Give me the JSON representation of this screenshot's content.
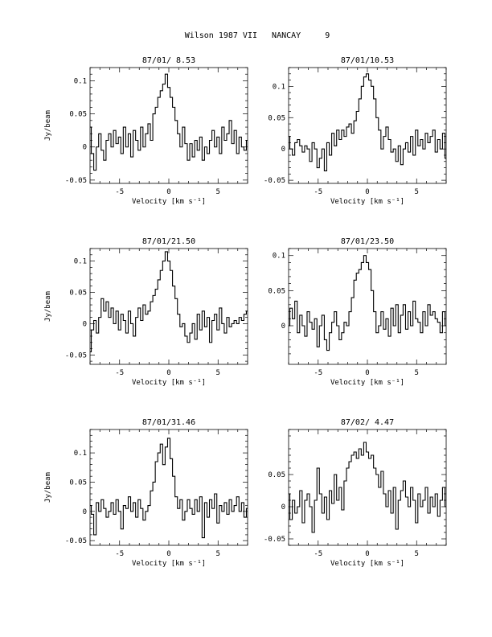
{
  "page_title": "Wilson 1987 VII   NANCAY     9",
  "chart_data": [
    {
      "type": "line",
      "title": "87/01/ 8.53",
      "xlabel": "Velocity [km s⁻¹]",
      "ylabel": "Jy/beam",
      "xlim": [
        -8,
        8
      ],
      "ylim": [
        -0.055,
        0.12
      ],
      "xticks": [
        -5,
        0,
        5
      ],
      "yticks": [
        0.1,
        0.05,
        0,
        -0.05
      ],
      "ytick_labels": [
        "0.1",
        "0.05",
        "0",
        "-0.05"
      ],
      "x": [
        -8.0,
        -7.75,
        -7.5,
        -7.25,
        -7.0,
        -6.75,
        -6.5,
        -6.25,
        -6.0,
        -5.75,
        -5.5,
        -5.25,
        -5.0,
        -4.75,
        -4.5,
        -4.25,
        -4.0,
        -3.75,
        -3.5,
        -3.25,
        -3.0,
        -2.75,
        -2.5,
        -2.25,
        -2.0,
        -1.75,
        -1.5,
        -1.25,
        -1.0,
        -0.75,
        -0.5,
        -0.25,
        0.0,
        0.25,
        0.5,
        0.75,
        1.0,
        1.25,
        1.5,
        1.75,
        2.0,
        2.25,
        2.5,
        2.75,
        3.0,
        3.25,
        3.5,
        3.75,
        4.0,
        4.25,
        4.5,
        4.75,
        5.0,
        5.25,
        5.5,
        5.75,
        6.0,
        6.25,
        6.5,
        6.75,
        7.0,
        7.25,
        7.5,
        7.75,
        8.0
      ],
      "y": [
        0.03,
        -0.01,
        -0.035,
        0.0,
        0.02,
        -0.005,
        -0.02,
        0.01,
        0.02,
        0.0,
        0.025,
        0.005,
        0.015,
        -0.01,
        0.03,
        0.0,
        0.02,
        -0.015,
        0.025,
        0.01,
        -0.005,
        0.03,
        0.0,
        0.02,
        0.035,
        0.01,
        0.05,
        0.06,
        0.075,
        0.085,
        0.095,
        0.11,
        0.09,
        0.075,
        0.06,
        0.04,
        0.02,
        0.0,
        0.03,
        0.005,
        -0.02,
        0.005,
        -0.015,
        0.01,
        -0.005,
        0.015,
        -0.02,
        0.0,
        -0.01,
        0.01,
        0.025,
        0.0,
        0.015,
        -0.01,
        0.03,
        0.01,
        0.02,
        0.04,
        0.005,
        0.025,
        -0.01,
        0.015,
        0.0,
        -0.005,
        0.01
      ]
    },
    {
      "type": "line",
      "title": "87/01/10.53",
      "xlabel": "Velocity [km s⁻¹]",
      "ylabel": "",
      "xlim": [
        -8,
        8
      ],
      "ylim": [
        -0.055,
        0.13
      ],
      "xticks": [
        -5,
        0,
        5
      ],
      "yticks": [
        0.1,
        0.05,
        0,
        -0.05
      ],
      "ytick_labels": [
        "0.1",
        "0.05",
        "0",
        "-0.05"
      ],
      "x": [
        -8.0,
        -7.75,
        -7.5,
        -7.25,
        -7.0,
        -6.75,
        -6.5,
        -6.25,
        -6.0,
        -5.75,
        -5.5,
        -5.25,
        -5.0,
        -4.75,
        -4.5,
        -4.25,
        -4.0,
        -3.75,
        -3.5,
        -3.25,
        -3.0,
        -2.75,
        -2.5,
        -2.25,
        -2.0,
        -1.75,
        -1.5,
        -1.25,
        -1.0,
        -0.75,
        -0.5,
        -0.25,
        0.0,
        0.25,
        0.5,
        0.75,
        1.0,
        1.25,
        1.5,
        1.75,
        2.0,
        2.25,
        2.5,
        2.75,
        3.0,
        3.25,
        3.5,
        3.75,
        4.0,
        4.25,
        4.5,
        4.75,
        5.0,
        5.25,
        5.5,
        5.75,
        6.0,
        6.25,
        6.5,
        6.75,
        7.0,
        7.25,
        7.5,
        7.75,
        8.0
      ],
      "y": [
        0.02,
        0.0,
        -0.01,
        0.01,
        0.015,
        0.005,
        -0.005,
        0.005,
        0.0,
        -0.02,
        0.01,
        0.0,
        -0.03,
        -0.015,
        0.0,
        -0.035,
        0.01,
        -0.01,
        0.025,
        0.005,
        0.03,
        0.015,
        0.03,
        0.02,
        0.035,
        0.04,
        0.025,
        0.045,
        0.06,
        0.08,
        0.1,
        0.115,
        0.12,
        0.11,
        0.1,
        0.08,
        0.05,
        0.03,
        0.0,
        0.02,
        0.035,
        0.015,
        -0.005,
        0.0,
        -0.02,
        0.005,
        -0.025,
        0.0,
        0.01,
        -0.005,
        0.02,
        -0.01,
        0.03,
        0.005,
        0.015,
        0.0,
        0.025,
        0.01,
        0.02,
        0.03,
        -0.005,
        0.015,
        0.0,
        0.025,
        -0.015
      ]
    },
    {
      "type": "line",
      "title": "87/01/21.50",
      "xlabel": "Velocity [km s⁻¹]",
      "ylabel": "Jy/beam",
      "xlim": [
        -8,
        8
      ],
      "ylim": [
        -0.065,
        0.12
      ],
      "xticks": [
        -5,
        0,
        5
      ],
      "yticks": [
        0.1,
        0.05,
        0,
        -0.05
      ],
      "ytick_labels": [
        "0.1",
        "0.05",
        "0",
        "-0.05"
      ],
      "x": [
        -8.0,
        -7.75,
        -7.5,
        -7.25,
        -7.0,
        -6.75,
        -6.5,
        -6.25,
        -6.0,
        -5.75,
        -5.5,
        -5.25,
        -5.0,
        -4.75,
        -4.5,
        -4.25,
        -4.0,
        -3.75,
        -3.5,
        -3.25,
        -3.0,
        -2.75,
        -2.5,
        -2.25,
        -2.0,
        -1.75,
        -1.5,
        -1.25,
        -1.0,
        -0.75,
        -0.5,
        -0.25,
        0.0,
        0.25,
        0.5,
        0.75,
        1.0,
        1.25,
        1.5,
        1.75,
        2.0,
        2.25,
        2.5,
        2.75,
        3.0,
        3.25,
        3.5,
        3.75,
        4.0,
        4.25,
        4.5,
        4.75,
        5.0,
        5.25,
        5.5,
        5.75,
        6.0,
        6.25,
        6.5,
        6.75,
        7.0,
        7.25,
        7.5,
        7.75,
        8.0
      ],
      "y": [
        -0.045,
        -0.01,
        0.005,
        -0.015,
        0.01,
        0.04,
        0.02,
        0.035,
        0.01,
        0.025,
        0.0,
        0.02,
        -0.01,
        0.015,
        0.005,
        -0.015,
        0.02,
        0.0,
        -0.02,
        0.01,
        0.025,
        0.005,
        0.03,
        0.015,
        0.02,
        0.035,
        0.045,
        0.055,
        0.07,
        0.085,
        0.1,
        0.115,
        0.1,
        0.085,
        0.06,
        0.04,
        0.015,
        -0.005,
        0.0,
        -0.02,
        -0.03,
        -0.015,
        0.0,
        -0.025,
        0.015,
        -0.01,
        0.02,
        -0.005,
        0.01,
        -0.03,
        0.005,
        0.015,
        -0.01,
        0.025,
        0.0,
        -0.015,
        0.01,
        -0.005,
        0.0,
        0.005,
        0.0,
        0.01,
        0.005,
        0.015,
        0.02
      ]
    },
    {
      "type": "line",
      "title": "87/01/23.50",
      "xlabel": "Velocity [km s⁻¹]",
      "ylabel": "",
      "xlim": [
        -8,
        8
      ],
      "ylim": [
        -0.055,
        0.11
      ],
      "xticks": [
        -5,
        0,
        5
      ],
      "yticks": [
        0.1,
        0.05,
        0
      ],
      "ytick_labels": [
        "0.1",
        "0.05",
        "0"
      ],
      "x": [
        -8.0,
        -7.75,
        -7.5,
        -7.25,
        -7.0,
        -6.75,
        -6.5,
        -6.25,
        -6.0,
        -5.75,
        -5.5,
        -5.25,
        -5.0,
        -4.75,
        -4.5,
        -4.25,
        -4.0,
        -3.75,
        -3.5,
        -3.25,
        -3.0,
        -2.75,
        -2.5,
        -2.25,
        -2.0,
        -1.75,
        -1.5,
        -1.25,
        -1.0,
        -0.75,
        -0.5,
        -0.25,
        0.0,
        0.25,
        0.5,
        0.75,
        1.0,
        1.25,
        1.5,
        1.75,
        2.0,
        2.25,
        2.5,
        2.75,
        3.0,
        3.25,
        3.5,
        3.75,
        4.0,
        4.25,
        4.5,
        4.75,
        5.0,
        5.25,
        5.5,
        5.75,
        6.0,
        6.25,
        6.5,
        6.75,
        7.0,
        7.25,
        7.5,
        7.75,
        8.0
      ],
      "y": [
        0.0,
        0.025,
        0.01,
        0.035,
        -0.01,
        0.015,
        0.0,
        -0.015,
        0.02,
        0.005,
        -0.005,
        0.01,
        -0.03,
        0.0,
        0.015,
        -0.02,
        -0.035,
        -0.01,
        0.005,
        0.02,
        0.0,
        -0.02,
        -0.01,
        0.005,
        0.0,
        0.02,
        0.04,
        0.065,
        0.075,
        0.08,
        0.09,
        0.1,
        0.09,
        0.08,
        0.05,
        0.02,
        -0.01,
        0.0,
        0.02,
        -0.005,
        0.01,
        -0.015,
        0.025,
        0.0,
        0.03,
        -0.01,
        0.015,
        0.03,
        -0.005,
        0.02,
        0.0,
        0.035,
        0.01,
        0.005,
        -0.01,
        0.02,
        0.0,
        0.03,
        0.015,
        0.02,
        0.01,
        0.005,
        -0.01,
        0.02,
        0.0
      ]
    },
    {
      "type": "line",
      "title": "87/01/31.46",
      "xlabel": "Velocity [km s⁻¹]",
      "ylabel": "Jy/beam",
      "xlim": [
        -8,
        8
      ],
      "ylim": [
        -0.058,
        0.14
      ],
      "xticks": [
        -5,
        0,
        5
      ],
      "yticks": [
        0.1,
        0.05,
        0,
        -0.05
      ],
      "ytick_labels": [
        "0.1",
        "0.05",
        "0",
        "-0.05"
      ],
      "x": [
        -8.0,
        -7.75,
        -7.5,
        -7.25,
        -7.0,
        -6.75,
        -6.5,
        -6.25,
        -6.0,
        -5.75,
        -5.5,
        -5.25,
        -5.0,
        -4.75,
        -4.5,
        -4.25,
        -4.0,
        -3.75,
        -3.5,
        -3.25,
        -3.0,
        -2.75,
        -2.5,
        -2.25,
        -2.0,
        -1.75,
        -1.5,
        -1.25,
        -1.0,
        -0.75,
        -0.5,
        -0.25,
        0.0,
        0.25,
        0.5,
        0.75,
        1.0,
        1.25,
        1.5,
        1.75,
        2.0,
        2.25,
        2.5,
        2.75,
        3.0,
        3.25,
        3.5,
        3.75,
        4.0,
        4.25,
        4.5,
        4.75,
        5.0,
        5.25,
        5.5,
        5.75,
        6.0,
        6.25,
        6.5,
        6.75,
        7.0,
        7.25,
        7.5,
        7.75,
        8.0
      ],
      "y": [
        0.01,
        -0.005,
        -0.04,
        0.015,
        0.0,
        0.02,
        0.005,
        -0.01,
        0.0,
        0.015,
        -0.005,
        0.02,
        0.0,
        -0.03,
        0.01,
        0.005,
        0.025,
        0.0,
        0.015,
        -0.01,
        0.02,
        0.005,
        -0.015,
        0.0,
        0.01,
        0.035,
        0.05,
        0.085,
        0.1,
        0.115,
        0.08,
        0.11,
        0.125,
        0.09,
        0.06,
        0.025,
        0.005,
        0.02,
        -0.015,
        0.0,
        0.02,
        0.005,
        -0.005,
        0.02,
        0.0,
        0.025,
        -0.045,
        0.015,
        -0.01,
        0.02,
        0.005,
        0.03,
        -0.02,
        0.01,
        0.0,
        0.015,
        -0.005,
        0.02,
        0.0,
        0.01,
        0.025,
        0.0,
        0.015,
        -0.01,
        0.005
      ]
    },
    {
      "type": "line",
      "title": "87/02/ 4.47",
      "xlabel": "Velocity [km s⁻¹]",
      "ylabel": "",
      "xlim": [
        -8,
        8
      ],
      "ylim": [
        -0.06,
        0.12
      ],
      "xticks": [
        -5,
        0,
        5
      ],
      "yticks": [
        0.05,
        0,
        -0.05
      ],
      "ytick_labels": [
        "0.05",
        "0",
        "-0.05"
      ],
      "x": [
        -8.0,
        -7.75,
        -7.5,
        -7.25,
        -7.0,
        -6.75,
        -6.5,
        -6.25,
        -6.0,
        -5.75,
        -5.5,
        -5.25,
        -5.0,
        -4.75,
        -4.5,
        -4.25,
        -4.0,
        -3.75,
        -3.5,
        -3.25,
        -3.0,
        -2.75,
        -2.5,
        -2.25,
        -2.0,
        -1.75,
        -1.5,
        -1.25,
        -1.0,
        -0.75,
        -0.5,
        -0.25,
        0.0,
        0.25,
        0.5,
        0.75,
        1.0,
        1.25,
        1.5,
        1.75,
        2.0,
        2.25,
        2.5,
        2.75,
        3.0,
        3.25,
        3.5,
        3.75,
        4.0,
        4.25,
        4.5,
        4.75,
        5.0,
        5.25,
        5.5,
        5.75,
        6.0,
        6.25,
        6.5,
        6.75,
        7.0,
        7.25,
        7.5,
        7.75,
        8.0
      ],
      "y": [
        0.02,
        -0.02,
        0.01,
        -0.01,
        0.0,
        0.025,
        -0.025,
        0.01,
        0.02,
        0.0,
        -0.04,
        0.01,
        0.06,
        0.02,
        -0.01,
        0.015,
        -0.02,
        0.025,
        0.005,
        0.05,
        0.01,
        0.03,
        -0.005,
        0.04,
        0.06,
        0.07,
        0.08,
        0.085,
        0.075,
        0.09,
        0.08,
        0.1,
        0.085,
        0.075,
        0.08,
        0.06,
        0.05,
        0.03,
        0.055,
        0.02,
        0.0,
        0.025,
        -0.01,
        0.03,
        -0.035,
        0.01,
        0.025,
        0.04,
        0.015,
        0.0,
        0.03,
        0.01,
        -0.025,
        0.02,
        0.0,
        0.01,
        0.03,
        -0.01,
        0.015,
        0.0,
        0.02,
        -0.015,
        0.01,
        0.03,
        0.0
      ]
    }
  ]
}
